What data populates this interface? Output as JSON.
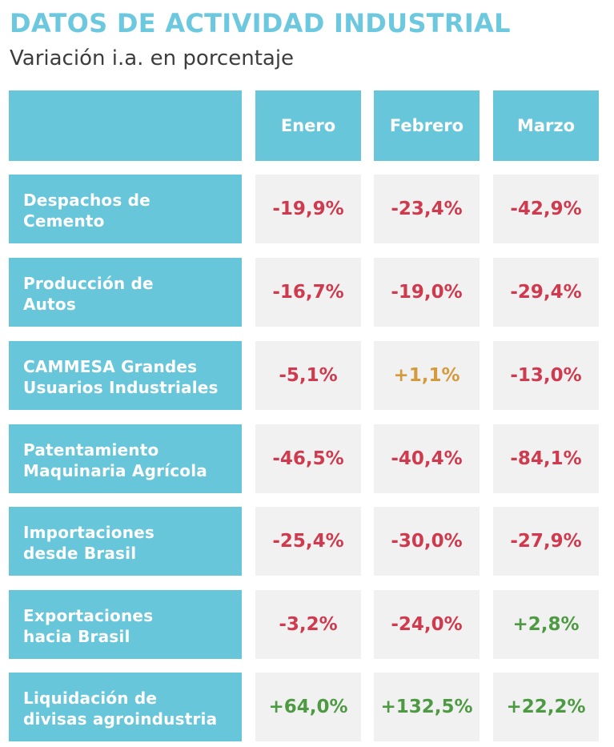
{
  "header": {
    "title": "DATOS DE ACTIVIDAD INDUSTRIAL",
    "subtitle": "Variación i.a. en porcentaje"
  },
  "table": {
    "columns": [
      "Enero",
      "Febrero",
      "Marzo"
    ],
    "rows": [
      {
        "label_lines": [
          "Despachos de",
          "Cemento"
        ],
        "values": [
          {
            "text": "-19,9%",
            "color": "#cf3a4e"
          },
          {
            "text": "-23,4%",
            "color": "#cf3a4e"
          },
          {
            "text": "-42,9%",
            "color": "#cf3a4e"
          }
        ]
      },
      {
        "label_lines": [
          "Producción de",
          "Autos"
        ],
        "values": [
          {
            "text": "-16,7%",
            "color": "#cf3a4e"
          },
          {
            "text": "-19,0%",
            "color": "#cf3a4e"
          },
          {
            "text": "-29,4%",
            "color": "#cf3a4e"
          }
        ]
      },
      {
        "label_lines": [
          "CAMMESA Grandes",
          "Usuarios Industriales"
        ],
        "values": [
          {
            "text": "-5,1%",
            "color": "#cf3a4e"
          },
          {
            "text": "+1,1%",
            "color": "#d49a3c"
          },
          {
            "text": "-13,0%",
            "color": "#cf3a4e"
          }
        ]
      },
      {
        "label_lines": [
          "Patentamiento",
          "Maquinaria Agrícola"
        ],
        "values": [
          {
            "text": "-46,5%",
            "color": "#cf3a4e"
          },
          {
            "text": "-40,4%",
            "color": "#cf3a4e"
          },
          {
            "text": "-84,1%",
            "color": "#cf3a4e"
          }
        ]
      },
      {
        "label_lines": [
          "Importaciones",
          "desde Brasil"
        ],
        "values": [
          {
            "text": "-25,4%",
            "color": "#cf3a4e"
          },
          {
            "text": "-30,0%",
            "color": "#cf3a4e"
          },
          {
            "text": "-27,9%",
            "color": "#cf3a4e"
          }
        ]
      },
      {
        "label_lines": [
          "Exportaciones",
          "hacia Brasil"
        ],
        "values": [
          {
            "text": "-3,2%",
            "color": "#cf3a4e"
          },
          {
            "text": "-24,0%",
            "color": "#cf3a4e"
          },
          {
            "text": "+2,8%",
            "color": "#4e9a43"
          }
        ]
      },
      {
        "label_lines": [
          "Liquidación de",
          "divisas agroindustria"
        ],
        "values": [
          {
            "text": "+64,0%",
            "color": "#4e9a43"
          },
          {
            "text": "+132,5%",
            "color": "#4e9a43"
          },
          {
            "text": "+22,2%",
            "color": "#4e9a43"
          }
        ]
      }
    ]
  },
  "colors": {
    "accent": "#68c6db",
    "negative": "#cf3a4e",
    "positive": "#4e9a43",
    "neutral_positive": "#d49a3c",
    "cell_background": "#f1f1f1"
  }
}
